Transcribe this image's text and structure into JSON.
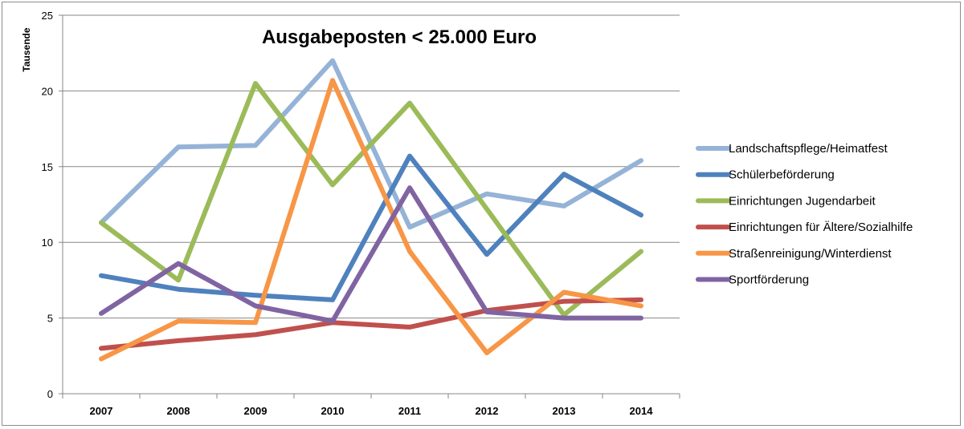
{
  "chart_data": {
    "type": "line",
    "title": "Ausgabeposten < 25.000 Euro",
    "xlabel": "",
    "ylabel": "Tausende",
    "ylim": [
      0,
      25
    ],
    "yticks": [
      0,
      5,
      10,
      15,
      20,
      25
    ],
    "grid": true,
    "legend_position": "right",
    "categories": [
      "2007",
      "2008",
      "2009",
      "2010",
      "2011",
      "2012",
      "2013",
      "2014"
    ],
    "series": [
      {
        "name": "Landschaftspflege/Heimatfest",
        "color": "#95B3D7",
        "values": [
          11.3,
          16.3,
          16.4,
          22.0,
          11.0,
          13.2,
          12.4,
          15.4
        ]
      },
      {
        "name": "Schülerbeförderung",
        "color": "#4F81BD",
        "values": [
          7.8,
          6.9,
          6.5,
          6.2,
          15.7,
          9.2,
          14.5,
          11.8
        ]
      },
      {
        "name": "Einrichtungen Jugendarbeit",
        "color": "#9BBB59",
        "values": [
          11.3,
          7.5,
          20.5,
          13.8,
          19.2,
          12.2,
          5.2,
          9.4
        ]
      },
      {
        "name": "Einrichtungen für Ältere/Sozialhilfe",
        "color": "#C0504D",
        "values": [
          3.0,
          3.5,
          3.9,
          4.7,
          4.4,
          5.5,
          6.1,
          6.2
        ]
      },
      {
        "name": "Straßenreinigung/Winterdienst",
        "color": "#F79646",
        "values": [
          2.3,
          4.8,
          4.7,
          20.7,
          9.4,
          2.7,
          6.7,
          5.8
        ]
      },
      {
        "name": "Sportförderung",
        "color": "#8064A2",
        "values": [
          5.3,
          8.6,
          5.8,
          4.8,
          13.6,
          5.4,
          5.0,
          5.0
        ]
      }
    ]
  }
}
